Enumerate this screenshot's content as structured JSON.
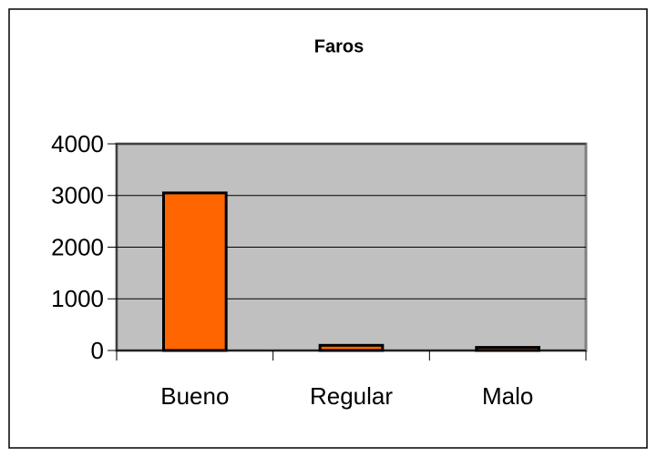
{
  "chart_data": {
    "type": "bar",
    "title": "Faros",
    "categories": [
      "Bueno",
      "Regular",
      "Malo"
    ],
    "values": [
      3050,
      100,
      60
    ],
    "color": "#ff6600",
    "ylim": [
      0,
      4000
    ],
    "yticks": [
      0,
      1000,
      2000,
      3000,
      4000
    ],
    "grid": true
  }
}
